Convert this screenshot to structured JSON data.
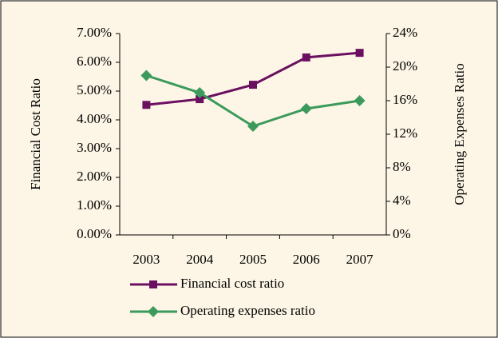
{
  "chart_data": {
    "type": "line",
    "categories": [
      "2003",
      "2004",
      "2005",
      "2006",
      "2007"
    ],
    "series": [
      {
        "name": "Financial cost ratio",
        "color": "#6b1060",
        "marker": "square",
        "values": [
          4.52,
          4.72,
          5.22,
          6.17,
          6.33
        ]
      },
      {
        "name": "Operating expenses ratio",
        "color": "#3c9a5c",
        "marker": "diamond",
        "axis": "y2",
        "values": [
          19.0,
          16.95,
          12.95,
          15.05,
          16.0
        ]
      }
    ],
    "y_label": "Financial  Cost  Ratio",
    "y2_label": "Operating Expenses Ratio",
    "ylim": [
      0,
      7
    ],
    "yticks": [
      {
        "value": 0,
        "label": "0.00%"
      },
      {
        "value": 1,
        "label": "1.00%"
      },
      {
        "value": 2,
        "label": "2.00%"
      },
      {
        "value": 3,
        "label": "3.00%"
      },
      {
        "value": 4,
        "label": "4.00%"
      },
      {
        "value": 5,
        "label": "5.00%"
      },
      {
        "value": 6,
        "label": "6.00%"
      },
      {
        "value": 7,
        "label": "7.00%"
      }
    ],
    "y2lim": [
      0,
      24
    ],
    "y2ticks": [
      {
        "value": 0,
        "label": "0%"
      },
      {
        "value": 4,
        "label": "4%"
      },
      {
        "value": 8,
        "label": "8%"
      },
      {
        "value": 12,
        "label": "12%"
      },
      {
        "value": 16,
        "label": "16%"
      },
      {
        "value": 20,
        "label": "20%"
      },
      {
        "value": 24,
        "label": "24%"
      }
    ],
    "legend": "bottom"
  }
}
